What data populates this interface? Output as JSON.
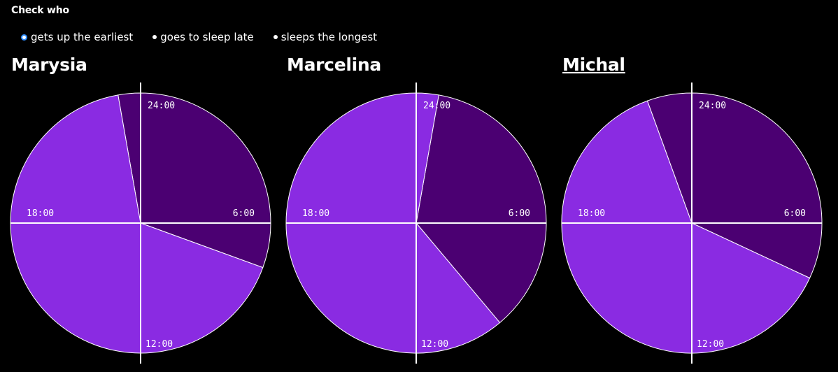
{
  "header": {
    "title": "Check who"
  },
  "options": [
    {
      "label": "gets up the earliest",
      "selected": true
    },
    {
      "label": "goes to sleep late",
      "selected": false
    },
    {
      "label": "sleeps the longest",
      "selected": false
    }
  ],
  "colors": {
    "sleep": "#4b0072",
    "awake": "#8a2be2",
    "selected_ring": "#2e8cff",
    "line": "#ffffff"
  },
  "chart_data": [
    {
      "type": "pie",
      "name": "Marysia",
      "tick_labels": [
        "24:00",
        "6:00",
        "12:00",
        "18:00"
      ],
      "slices": [
        {
          "from": "23:20",
          "to": "24:00",
          "category": "sleep"
        },
        {
          "from": "0:00",
          "to": "7:20",
          "category": "sleep"
        },
        {
          "from": "7:20",
          "to": "23:20",
          "category": "awake"
        }
      ]
    },
    {
      "type": "pie",
      "name": "Marcelina",
      "tick_labels": [
        "24:00",
        "6:00",
        "12:00",
        "18:00"
      ],
      "slices": [
        {
          "from": "0:40",
          "to": "9:20",
          "category": "sleep"
        },
        {
          "from": "9:20",
          "to": "24:00",
          "category": "awake"
        },
        {
          "from": "0:00",
          "to": "0:40",
          "category": "awake"
        }
      ]
    },
    {
      "type": "pie",
      "name": "Michal",
      "tick_labels": [
        "24:00",
        "6:00",
        "12:00",
        "18:00"
      ],
      "slices": [
        {
          "from": "22:40",
          "to": "24:00",
          "category": "sleep"
        },
        {
          "from": "0:00",
          "to": "7:40",
          "category": "sleep"
        },
        {
          "from": "7:40",
          "to": "22:40",
          "category": "awake"
        }
      ]
    }
  ]
}
